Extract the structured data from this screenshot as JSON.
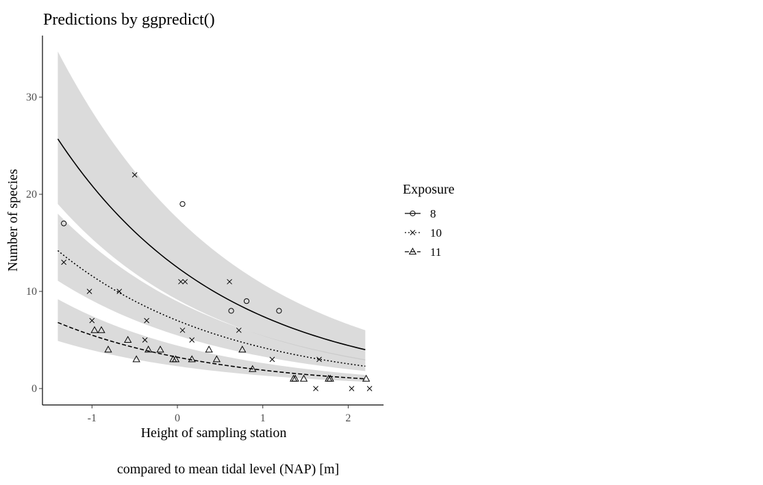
{
  "chart_data": {
    "type": "scatter",
    "title": "Predictions by ggpredict()",
    "xlabel_line1": "Height of sampling station",
    "xlabel_line2": "compared to mean tidal level (NAP) [m]",
    "ylabel": "Number of species",
    "xlim": [
      -1.58,
      2.4
    ],
    "ylim": [
      -1.7,
      36.3
    ],
    "xticks": [
      -1,
      0,
      1,
      2
    ],
    "xtick_labels": [
      "-1",
      "0",
      "1",
      "2"
    ],
    "yticks": [
      0,
      10,
      20,
      30
    ],
    "ytick_labels": [
      "0",
      "10",
      "20",
      "30"
    ],
    "grid": false,
    "legend": {
      "title": "Exposure",
      "placement": "right"
    },
    "fit_range": [
      -1.4,
      2.2
    ],
    "series": [
      {
        "name": "8",
        "marker": "circle",
        "linetype": "solid",
        "fit": {
          "at_start": 25.7,
          "at_end": 4.0
        },
        "ci_low": {
          "at_start": 19.0,
          "at_end": 2.9
        },
        "ci_high": {
          "at_start": 34.7,
          "at_end": 6.0
        },
        "points": [
          [
            -1.33,
            17
          ],
          [
            0.06,
            19
          ],
          [
            0.63,
            8
          ],
          [
            0.81,
            9
          ],
          [
            1.19,
            8
          ]
        ]
      },
      {
        "name": "10",
        "marker": "cross",
        "linetype": "dotted",
        "fit": {
          "at_start": 14.2,
          "at_end": 2.3
        },
        "ci_low": {
          "at_start": 11.1,
          "at_end": 1.8
        },
        "ci_high": {
          "at_start": 18.0,
          "at_end": 3.0
        },
        "points": [
          [
            -1.33,
            13
          ],
          [
            -0.5,
            22
          ],
          [
            -1.03,
            10
          ],
          [
            -0.68,
            10
          ],
          [
            0.04,
            11
          ],
          [
            0.09,
            11
          ],
          [
            0.61,
            11
          ],
          [
            -1.0,
            7
          ],
          [
            -0.36,
            7
          ],
          [
            -0.38,
            5
          ],
          [
            0.06,
            6
          ],
          [
            0.17,
            5
          ],
          [
            0.72,
            6
          ],
          [
            1.11,
            3
          ],
          [
            1.66,
            3
          ],
          [
            1.62,
            0
          ],
          [
            2.04,
            0
          ],
          [
            2.25,
            0
          ]
        ]
      },
      {
        "name": "11",
        "marker": "triangle",
        "linetype": "dashed",
        "fit": {
          "at_start": 6.8,
          "at_end": 1.0
        },
        "ci_low": {
          "at_start": 4.9,
          "at_end": 0.7
        },
        "ci_high": {
          "at_start": 9.2,
          "at_end": 1.4
        },
        "points": [
          [
            -0.97,
            6
          ],
          [
            -0.89,
            6
          ],
          [
            -0.81,
            4
          ],
          [
            -0.58,
            5
          ],
          [
            -0.48,
            3
          ],
          [
            -0.34,
            4
          ],
          [
            -0.2,
            4
          ],
          [
            -0.05,
            3
          ],
          [
            -0.02,
            3
          ],
          [
            0.17,
            3
          ],
          [
            0.37,
            4
          ],
          [
            0.46,
            3
          ],
          [
            0.76,
            4
          ],
          [
            0.88,
            2
          ],
          [
            1.36,
            1
          ],
          [
            1.38,
            1
          ],
          [
            1.48,
            1
          ],
          [
            1.77,
            1
          ],
          [
            1.79,
            1
          ],
          [
            2.21,
            1
          ]
        ]
      }
    ]
  }
}
